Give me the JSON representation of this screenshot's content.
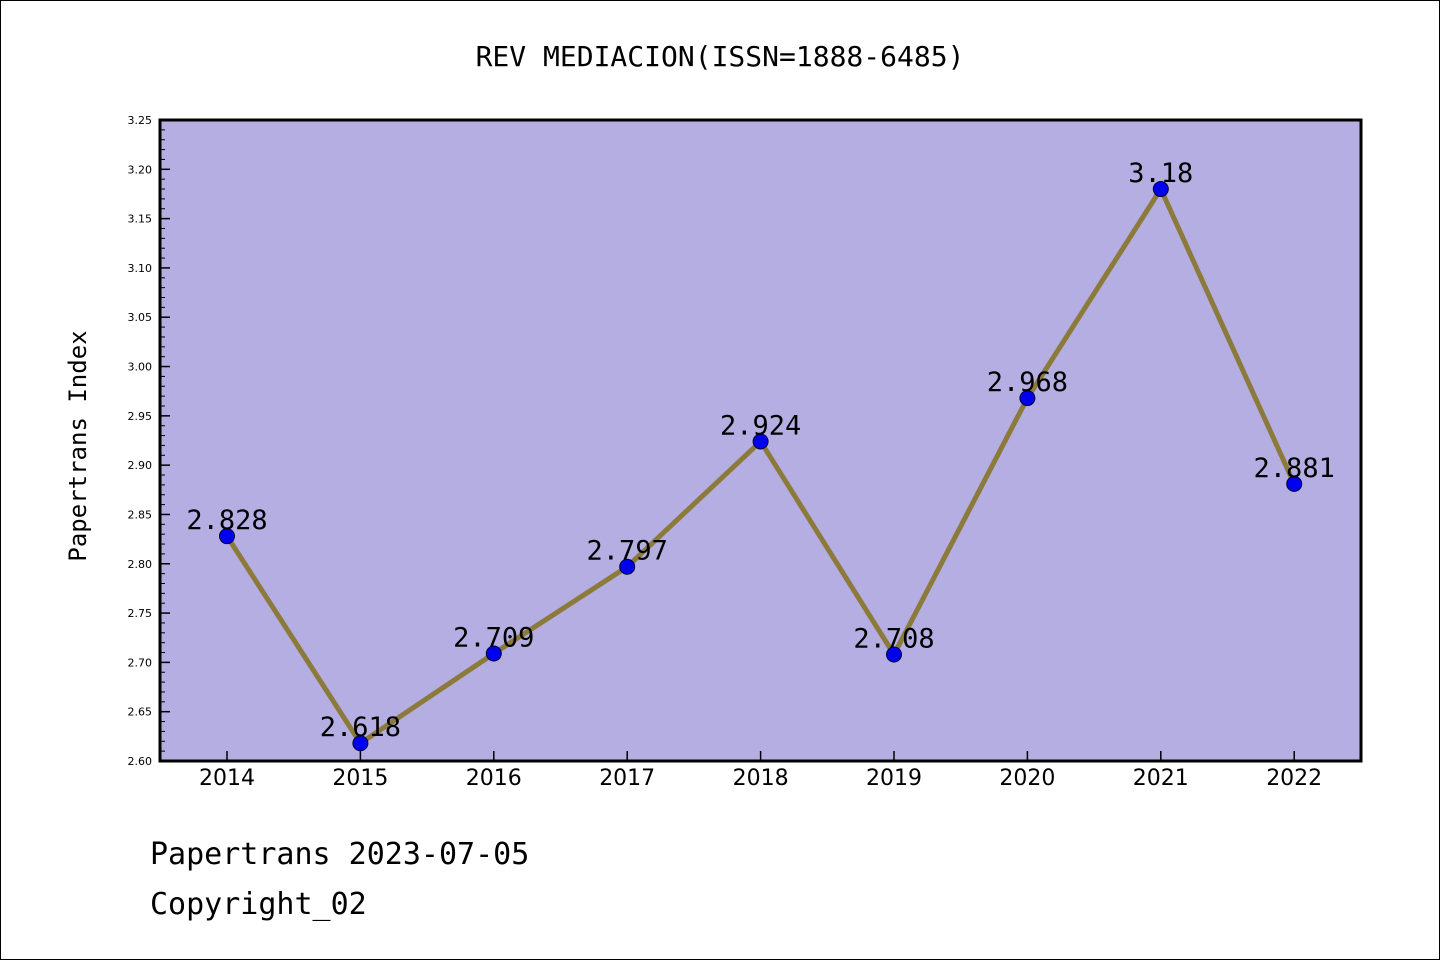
{
  "chart_data": {
    "type": "line",
    "title": "REV MEDIACION(ISSN=1888-6485)",
    "ylabel": "Papertrans Index",
    "xlabel": "",
    "categories": [
      "2014",
      "2015",
      "2016",
      "2017",
      "2018",
      "2019",
      "2020",
      "2021",
      "2022"
    ],
    "series": [
      {
        "values": [
          2.828,
          2.618,
          2.709,
          2.797,
          2.924,
          2.708,
          2.968,
          3.18,
          2.881
        ],
        "labels": [
          "2.828",
          "2.618",
          "2.709",
          "2.797",
          "2.924",
          "2.708",
          "2.968",
          "3.18",
          "2.881"
        ]
      }
    ],
    "ylim": [
      2.6,
      3.25
    ],
    "yticks": [
      "2.60",
      "2.65",
      "2.70",
      "2.75",
      "2.80",
      "2.85",
      "2.90",
      "2.95",
      "3.00",
      "3.05",
      "3.10",
      "3.15",
      "3.20",
      "3.25"
    ],
    "grid": false,
    "colors": {
      "plot_background": "#b4aee2",
      "line": "#8b7a3a",
      "marker": "#0000ee"
    }
  },
  "footer": {
    "line1": "Papertrans 2023-07-05",
    "line2": "Copyright_02"
  }
}
